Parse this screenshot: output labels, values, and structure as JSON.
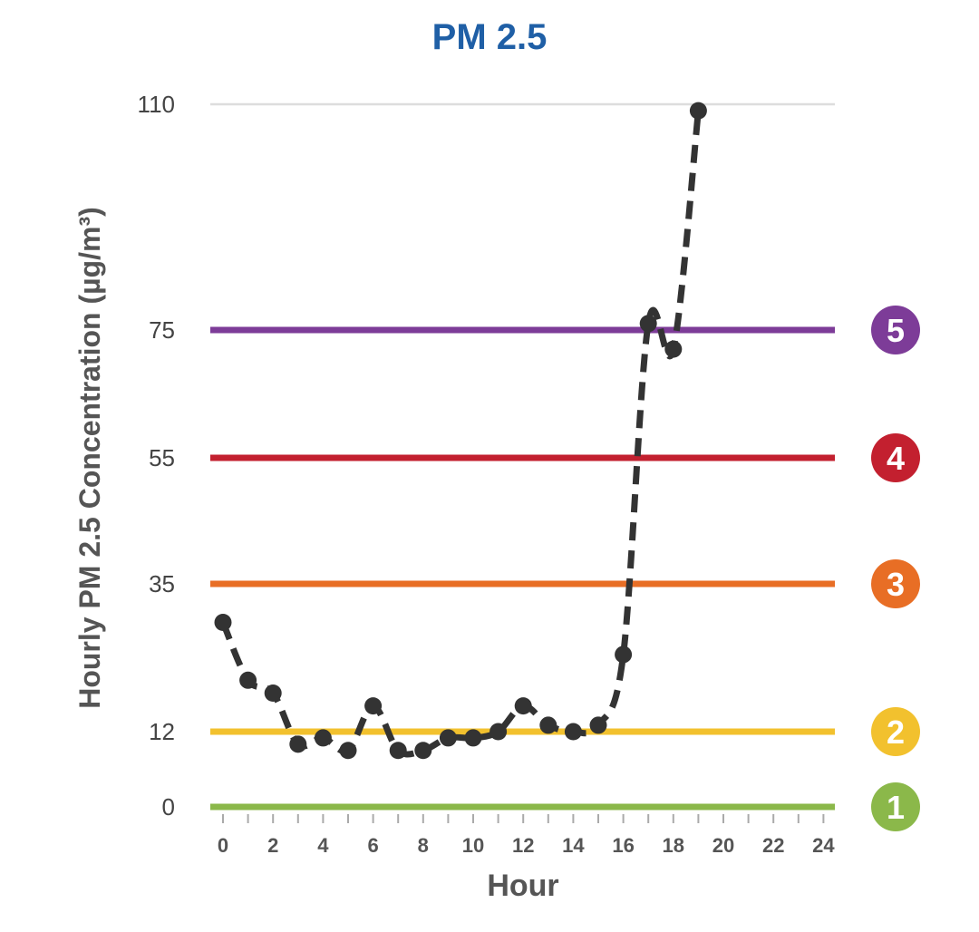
{
  "chart_data": {
    "type": "line",
    "title": "PM 2.5",
    "xlabel": "Hour",
    "ylabel": "Hourly PM 2.5 Concentration (µg/m³)",
    "x_ticks": [
      0,
      2,
      4,
      6,
      8,
      10,
      12,
      14,
      16,
      18,
      20,
      22,
      24
    ],
    "y_ticks": [
      0,
      12,
      35,
      55,
      75,
      110
    ],
    "xlim": [
      0,
      24
    ],
    "ylim": [
      0,
      110
    ],
    "grid": true,
    "series": [
      {
        "x": [
          0,
          1,
          2,
          3,
          4,
          5,
          6,
          7,
          8,
          9,
          10,
          11,
          12,
          13,
          14,
          15,
          16,
          17,
          18,
          19
        ],
        "y": [
          29,
          20,
          18,
          10,
          11,
          9,
          16,
          9,
          9,
          11,
          11,
          12,
          16,
          13,
          12,
          13,
          24,
          76,
          72,
          109
        ],
        "color": "#333333",
        "style": "dashed"
      }
    ],
    "thresholds": [
      {
        "value": 0,
        "label": "1",
        "color": "#8BB84A"
      },
      {
        "value": 12,
        "label": "2",
        "color": "#F2C12E"
      },
      {
        "value": 35,
        "label": "3",
        "color": "#E86E25"
      },
      {
        "value": 55,
        "label": "4",
        "color": "#C3202F"
      },
      {
        "value": 75,
        "label": "5",
        "color": "#7D3C98"
      }
    ],
    "colors": {
      "title": "#1F5FA6",
      "axis": "#555555",
      "grid": "#DDDDDD"
    }
  }
}
